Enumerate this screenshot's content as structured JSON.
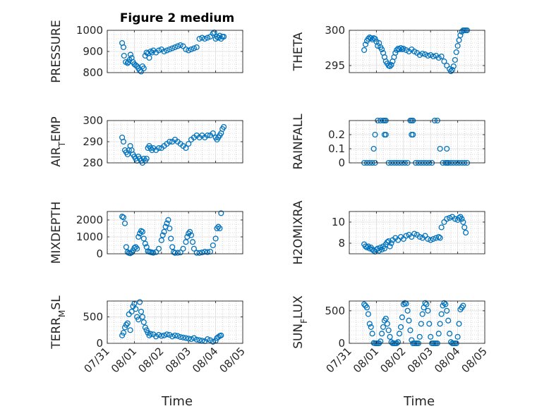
{
  "figure": {
    "title": "Figure 2 medium",
    "xlabel": "Time"
  },
  "chart_data": [
    {
      "type": "scatter",
      "ylabel": "PRESSURE",
      "ylim": [
        800,
        1000
      ],
      "yticks": [
        800,
        900,
        1000
      ],
      "ytick_labels": [
        "800",
        "900",
        "1000"
      ],
      "xlim": [
        0,
        5
      ],
      "xticks": [
        0,
        1,
        2,
        3,
        4,
        5
      ],
      "x": [
        0.55,
        0.6,
        0.62,
        0.68,
        0.75,
        0.78,
        0.82,
        0.86,
        0.9,
        0.95,
        1.0,
        1.05,
        1.1,
        1.15,
        1.2,
        1.25,
        1.3,
        1.35,
        1.4,
        1.45,
        1.5,
        1.55,
        1.6,
        1.65,
        1.7,
        1.8,
        1.9,
        2.0,
        2.1,
        2.2,
        2.3,
        2.4,
        2.5,
        2.6,
        2.7,
        2.8,
        2.9,
        3.0,
        3.1,
        3.2,
        3.3,
        3.4,
        3.5,
        3.6,
        3.7,
        3.8,
        3.9,
        3.95,
        4.0,
        4.05,
        4.1,
        4.15,
        4.2,
        4.25,
        4.3
      ],
      "y": [
        940,
        920,
        880,
        850,
        845,
        850,
        860,
        885,
        870,
        850,
        840,
        835,
        830,
        820,
        810,
        805,
        830,
        820,
        880,
        895,
        890,
        870,
        900,
        895,
        905,
        895,
        905,
        910,
        900,
        905,
        910,
        915,
        920,
        925,
        930,
        925,
        910,
        905,
        910,
        915,
        920,
        960,
        965,
        960,
        965,
        970,
        985,
        990,
        960,
        970,
        965,
        975,
        960,
        970,
        970
      ]
    },
    {
      "type": "scatter",
      "ylabel": "THETA",
      "ylim": [
        294,
        300
      ],
      "yticks": [
        295,
        300
      ],
      "ytick_labels": [
        "295",
        "300"
      ],
      "xlim": [
        0,
        5
      ],
      "xticks": [
        0,
        1,
        2,
        3,
        4,
        5
      ],
      "x": [
        0.55,
        0.6,
        0.65,
        0.7,
        0.75,
        0.8,
        0.85,
        0.9,
        0.95,
        1.0,
        1.05,
        1.1,
        1.15,
        1.2,
        1.25,
        1.3,
        1.35,
        1.4,
        1.45,
        1.5,
        1.55,
        1.6,
        1.65,
        1.7,
        1.75,
        1.8,
        1.85,
        1.9,
        1.95,
        2.0,
        2.1,
        2.2,
        2.3,
        2.4,
        2.5,
        2.6,
        2.7,
        2.8,
        2.9,
        3.0,
        3.1,
        3.2,
        3.3,
        3.4,
        3.5,
        3.6,
        3.7,
        3.75,
        3.8,
        3.85,
        3.9,
        3.95,
        4.0,
        4.05,
        4.1,
        4.15,
        4.2,
        4.25,
        4.3,
        4.35
      ],
      "y": [
        297.2,
        298,
        298.5,
        298.8,
        299,
        298.9,
        298.7,
        298.9,
        298.8,
        298.4,
        297.8,
        298.2,
        297.6,
        297.3,
        296.8,
        296.2,
        295.6,
        295.3,
        295.0,
        294.9,
        295.1,
        295.6,
        296.2,
        296.8,
        297.2,
        297.4,
        297.3,
        297.5,
        297.3,
        297.4,
        297.2,
        297.0,
        297.3,
        297.0,
        296.8,
        296.5,
        296.7,
        296.6,
        296.4,
        296.5,
        296.3,
        296.4,
        296.1,
        296.3,
        295.6,
        295.0,
        294.5,
        294.2,
        294.4,
        294.9,
        295.8,
        296.9,
        297.8,
        298.6,
        299.3,
        299.8,
        300.0,
        300.0,
        300.0,
        300.0
      ]
    },
    {
      "type": "scatter",
      "ylabel_main": "AIR",
      "ylabel_sub": "T",
      "ylabel_tail": "EMP",
      "ylim": [
        280,
        300
      ],
      "yticks": [
        280,
        290,
        300
      ],
      "ytick_labels": [
        "280",
        "290",
        "300"
      ],
      "xlim": [
        0,
        5
      ],
      "xticks": [
        0,
        1,
        2,
        3,
        4,
        5
      ],
      "x": [
        0.55,
        0.6,
        0.65,
        0.7,
        0.75,
        0.8,
        0.85,
        0.9,
        0.95,
        1.0,
        1.05,
        1.1,
        1.15,
        1.2,
        1.25,
        1.3,
        1.35,
        1.4,
        1.45,
        1.5,
        1.55,
        1.6,
        1.65,
        1.7,
        1.8,
        1.9,
        2.0,
        2.1,
        2.2,
        2.3,
        2.4,
        2.5,
        2.6,
        2.7,
        2.8,
        2.9,
        3.0,
        3.1,
        3.2,
        3.3,
        3.4,
        3.5,
        3.6,
        3.7,
        3.8,
        3.9,
        4.0,
        4.05,
        4.1,
        4.15,
        4.2,
        4.25,
        4.3
      ],
      "y": [
        292,
        290,
        286,
        285,
        284,
        286,
        288,
        286,
        284,
        283,
        282,
        281,
        283,
        282,
        281,
        280,
        282,
        281,
        282,
        287,
        288,
        287,
        286,
        287,
        286,
        287,
        287,
        288,
        289,
        290,
        290,
        291,
        290,
        289,
        288,
        287,
        289,
        291,
        292,
        293,
        292,
        293,
        292,
        293,
        293,
        294,
        292,
        291,
        292,
        293,
        294,
        296,
        297
      ]
    },
    {
      "type": "scatter",
      "ylabel": "RAINFALL",
      "ylim": [
        0,
        0.3
      ],
      "yticks": [
        0,
        0.1,
        0.2
      ],
      "ytick_labels": [
        "0",
        "0.1",
        "0.2"
      ],
      "xlim": [
        0,
        5
      ],
      "xticks": [
        0,
        1,
        2,
        3,
        4,
        5
      ],
      "x": [
        0.55,
        0.65,
        0.75,
        0.85,
        0.95,
        0.9,
        0.95,
        1.05,
        1.15,
        1.25,
        1.3,
        1.3,
        1.35,
        1.35,
        1.45,
        1.55,
        1.65,
        1.75,
        1.85,
        1.95,
        2.05,
        2.15,
        2.25,
        2.3,
        2.3,
        2.35,
        2.35,
        2.45,
        2.55,
        2.65,
        2.75,
        2.85,
        2.95,
        3.05,
        3.15,
        3.25,
        3.35,
        3.45,
        3.55,
        3.6,
        3.6,
        3.65,
        3.65,
        3.75,
        3.85,
        3.95,
        4.05,
        4.15,
        4.25,
        4.35
      ],
      "y": [
        0,
        0,
        0,
        0,
        0,
        0.1,
        0.2,
        0.3,
        0.3,
        0.3,
        0.2,
        0.3,
        0.3,
        0.2,
        0,
        0,
        0,
        0,
        0,
        0,
        0,
        0,
        0.3,
        0.2,
        0.3,
        0.2,
        0.3,
        0,
        0,
        0,
        0,
        0,
        0,
        0,
        0.3,
        0.3,
        0.1,
        0,
        0,
        0.1,
        0,
        0,
        0,
        0,
        0,
        0,
        0,
        0,
        0,
        0
      ]
    },
    {
      "type": "scatter",
      "ylabel": "MIXDEPTH",
      "ylim": [
        0,
        2500
      ],
      "yticks": [
        0,
        1000,
        2000
      ],
      "ytick_labels": [
        "0",
        "1000",
        "2000"
      ],
      "xlim": [
        0,
        5
      ],
      "xticks": [
        0,
        1,
        2,
        3,
        4,
        5
      ],
      "x": [
        0.55,
        0.6,
        0.65,
        0.7,
        0.75,
        0.8,
        0.85,
        0.9,
        0.95,
        1.0,
        1.05,
        1.1,
        1.15,
        1.2,
        1.25,
        1.3,
        1.35,
        1.4,
        1.45,
        1.5,
        1.55,
        1.6,
        1.65,
        1.7,
        1.8,
        1.9,
        2.0,
        2.05,
        2.1,
        2.15,
        2.2,
        2.25,
        2.3,
        2.35,
        2.4,
        2.45,
        2.5,
        2.6,
        2.7,
        2.8,
        2.9,
        2.95,
        3.0,
        3.05,
        3.1,
        3.15,
        3.2,
        3.3,
        3.4,
        3.5,
        3.6,
        3.7,
        3.8,
        3.9,
        4.0,
        4.05,
        4.1,
        4.15,
        4.2
      ],
      "y": [
        2200,
        2150,
        1800,
        400,
        100,
        50,
        30,
        80,
        200,
        350,
        400,
        300,
        1000,
        1200,
        1350,
        1300,
        900,
        600,
        400,
        150,
        120,
        100,
        80,
        60,
        100,
        300,
        800,
        1100,
        1300,
        1600,
        1800,
        2000,
        1500,
        900,
        400,
        100,
        50,
        60,
        80,
        300,
        700,
        1000,
        1200,
        1300,
        1100,
        700,
        300,
        60,
        50,
        80,
        120,
        100,
        130,
        500,
        900,
        1500,
        1600,
        1500,
        2400
      ]
    },
    {
      "type": "scatter",
      "ylabel": "H2OMIXRA",
      "ylim": [
        7,
        11
      ],
      "yticks": [
        8,
        10
      ],
      "ytick_labels": [
        "8",
        "10"
      ],
      "xlim": [
        0,
        5
      ],
      "xticks": [
        0,
        1,
        2,
        3,
        4,
        5
      ],
      "x": [
        0.55,
        0.6,
        0.65,
        0.7,
        0.75,
        0.8,
        0.85,
        0.9,
        0.95,
        1.0,
        1.05,
        1.1,
        1.15,
        1.2,
        1.25,
        1.3,
        1.35,
        1.4,
        1.45,
        1.5,
        1.55,
        1.6,
        1.7,
        1.8,
        1.9,
        2.0,
        2.1,
        2.2,
        2.3,
        2.4,
        2.5,
        2.6,
        2.7,
        2.8,
        2.9,
        3.0,
        3.1,
        3.2,
        3.3,
        3.35,
        3.4,
        3.5,
        3.6,
        3.7,
        3.8,
        3.9,
        4.0,
        4.05,
        4.1,
        4.15,
        4.2,
        4.25,
        4.3
      ],
      "y": [
        7.9,
        7.7,
        7.6,
        7.7,
        7.5,
        7.6,
        7.4,
        7.3,
        7.2,
        7.4,
        7.5,
        7.3,
        7.6,
        7.4,
        7.7,
        7.5,
        7.9,
        8.1,
        8.2,
        7.7,
        8.0,
        8.3,
        8.5,
        8.3,
        8.6,
        8.4,
        8.7,
        8.8,
        8.6,
        8.9,
        8.8,
        8.6,
        8.5,
        8.7,
        8.4,
        8.3,
        8.4,
        8.5,
        8.6,
        8.5,
        9.5,
        10.0,
        10.3,
        10.4,
        10.5,
        10.3,
        10.2,
        10.4,
        10.5,
        10.3,
        10.0,
        9.5,
        9.0
      ]
    },
    {
      "type": "scatter",
      "ylabel_main": "TERR",
      "ylabel_sub": "M",
      "ylabel_tail": "SL",
      "ylim": [
        0,
        800
      ],
      "yticks": [
        0,
        500
      ],
      "ytick_labels": [
        "0",
        "500"
      ],
      "xlim": [
        0,
        5
      ],
      "xticks": [
        0,
        1,
        2,
        3,
        4,
        5
      ],
      "x": [
        0.55,
        0.6,
        0.65,
        0.7,
        0.75,
        0.8,
        0.85,
        0.9,
        0.95,
        1.0,
        1.05,
        1.1,
        1.15,
        1.2,
        1.25,
        1.3,
        1.35,
        1.4,
        1.45,
        1.5,
        1.55,
        1.6,
        1.7,
        1.8,
        1.9,
        2.0,
        2.1,
        2.2,
        2.3,
        2.4,
        2.5,
        2.6,
        2.7,
        2.8,
        2.9,
        3.0,
        3.1,
        3.2,
        3.3,
        3.4,
        3.5,
        3.6,
        3.7,
        3.8,
        3.9,
        4.0,
        4.05,
        4.1,
        4.15,
        4.2
      ],
      "y": [
        150,
        200,
        300,
        350,
        380,
        550,
        250,
        600,
        700,
        750,
        650,
        500,
        450,
        780,
        600,
        500,
        400,
        300,
        250,
        200,
        150,
        180,
        170,
        130,
        160,
        140,
        150,
        170,
        160,
        130,
        150,
        140,
        120,
        110,
        100,
        90,
        80,
        100,
        70,
        60,
        50,
        40,
        80,
        60,
        30,
        50,
        100,
        120,
        140,
        150
      ]
    },
    {
      "type": "scatter",
      "ylabel_main": "SUN",
      "ylabel_sub": "F",
      "ylabel_tail": "LUX",
      "ylim": [
        0,
        650
      ],
      "yticks": [
        0,
        500
      ],
      "ytick_labels": [
        "0",
        "500"
      ],
      "xlim": [
        0,
        5
      ],
      "xticks": [
        0,
        1,
        2,
        3,
        4,
        5
      ],
      "x": [
        0.55,
        0.6,
        0.65,
        0.7,
        0.75,
        0.8,
        0.85,
        0.9,
        0.95,
        1.0,
        1.05,
        1.1,
        1.15,
        1.2,
        1.25,
        1.3,
        1.35,
        1.4,
        1.45,
        1.5,
        1.55,
        1.6,
        1.65,
        1.7,
        1.75,
        1.8,
        1.85,
        1.9,
        1.95,
        2.0,
        2.05,
        2.1,
        2.15,
        2.2,
        2.25,
        2.3,
        2.35,
        2.4,
        2.45,
        2.5,
        2.55,
        2.6,
        2.65,
        2.7,
        2.75,
        2.8,
        2.85,
        2.9,
        2.95,
        3.0,
        3.05,
        3.1,
        3.15,
        3.2,
        3.25,
        3.3,
        3.35,
        3.4,
        3.45,
        3.5,
        3.55,
        3.6,
        3.65,
        3.7,
        3.75,
        3.8,
        3.85,
        3.9,
        3.95,
        4.0,
        4.05,
        4.1,
        4.15,
        4.2
      ],
      "y": [
        600,
        580,
        550,
        450,
        300,
        250,
        150,
        5,
        0,
        0,
        0,
        0,
        30,
        150,
        250,
        350,
        380,
        300,
        200,
        100,
        20,
        0,
        0,
        0,
        0,
        20,
        150,
        250,
        400,
        600,
        620,
        610,
        500,
        350,
        200,
        50,
        0,
        0,
        0,
        0,
        0,
        100,
        300,
        450,
        550,
        620,
        600,
        500,
        300,
        100,
        0,
        0,
        0,
        0,
        0,
        150,
        300,
        450,
        580,
        620,
        600,
        500,
        350,
        150,
        20,
        0,
        0,
        0,
        0,
        100,
        300,
        520,
        550,
        580
      ]
    }
  ],
  "xtick_labels": [
    "07/31",
    "08/01",
    "08/02",
    "08/03",
    "08/04",
    "08/05"
  ],
  "colors": {
    "marker": "#0072BD",
    "axis": "#262626",
    "grid": "#dcdcdc",
    "minor_grid": "#b9b9b9"
  }
}
